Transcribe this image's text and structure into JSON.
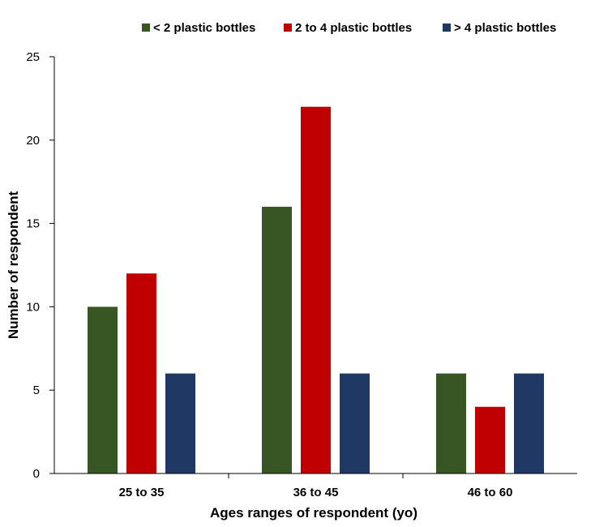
{
  "chart_data": {
    "type": "bar",
    "title": "",
    "xlabel": "Ages ranges of respondent (yo)",
    "ylabel": "Number of respondent",
    "categories": [
      "25 to 35",
      "36 to 45",
      "46 to 60"
    ],
    "series": [
      {
        "name": "< 2 plastic bottles",
        "values": [
          10,
          16,
          6
        ],
        "color": "#375623"
      },
      {
        "name": "2 to 4 plastic bottles",
        "values": [
          12,
          22,
          4
        ],
        "color": "#c00000"
      },
      {
        "name": "> 4 plastic bottles",
        "values": [
          6,
          6,
          6
        ],
        "color": "#1f3864"
      }
    ],
    "ylim": [
      0,
      25
    ],
    "yticks": [
      "0",
      "5",
      "10",
      "15",
      "20",
      "25"
    ],
    "grid": false,
    "legend_position": "top-right"
  }
}
